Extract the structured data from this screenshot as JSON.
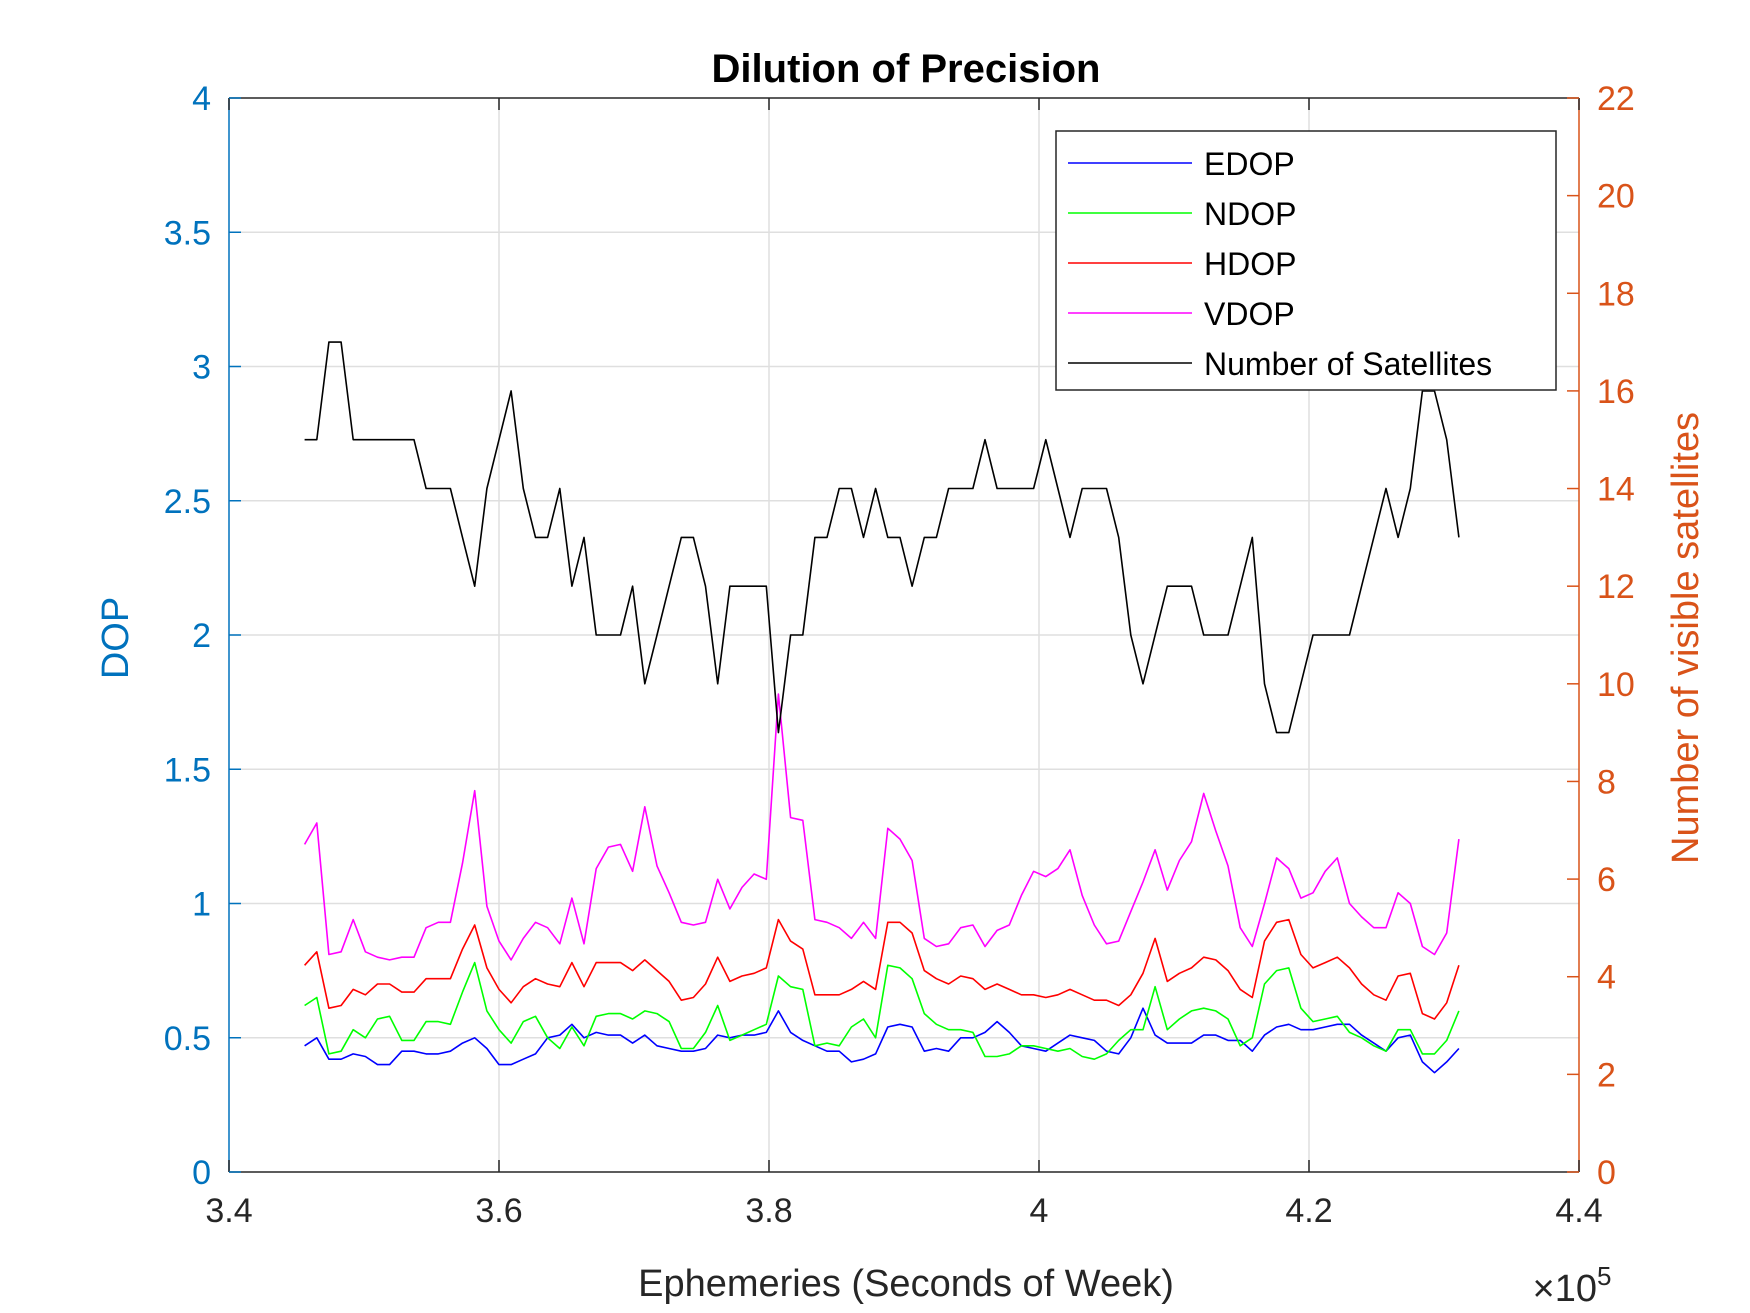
{
  "chart_data": {
    "type": "line",
    "title": "Dilution of Precision",
    "xlabel": "Ephemeries (Seconds of Week)",
    "ylabel_left": "DOP",
    "ylabel_right": "Number of visible satellites",
    "x_exponent_label": "×10",
    "x_exponent_power": "5",
    "xlim": [
      340000,
      440000
    ],
    "ylim_left": [
      0,
      4
    ],
    "ylim_right": [
      0,
      22
    ],
    "x_ticks": [
      340000,
      360000,
      380000,
      400000,
      420000,
      440000
    ],
    "x_tick_labels": [
      "3.4",
      "3.6",
      "3.8",
      "4",
      "4.2",
      "4.4"
    ],
    "y_left_ticks": [
      0,
      0.5,
      1,
      1.5,
      2,
      2.5,
      3,
      3.5,
      4
    ],
    "y_left_tick_labels": [
      "0",
      "0.5",
      "1",
      "1.5",
      "2",
      "2.5",
      "3",
      "3.5",
      "4"
    ],
    "y_right_ticks": [
      0,
      2,
      4,
      6,
      8,
      10,
      12,
      14,
      16,
      18,
      20,
      22
    ],
    "y_right_tick_labels": [
      "0",
      "2",
      "4",
      "6",
      "8",
      "10",
      "12",
      "14",
      "16",
      "18",
      "20",
      "22"
    ],
    "grid": true,
    "legend_position": "top-right",
    "x": [
      345600,
      346500,
      347400,
      348300,
      349200,
      350100,
      351000,
      351900,
      352800,
      353700,
      354600,
      355500,
      356400,
      357300,
      358200,
      359100,
      360000,
      360900,
      361800,
      362700,
      363600,
      364500,
      365400,
      366300,
      367200,
      368100,
      369000,
      369900,
      370800,
      371700,
      372600,
      373500,
      374400,
      375300,
      376200,
      377100,
      378000,
      378900,
      379800,
      380700,
      381600,
      382500,
      383400,
      384300,
      385200,
      386100,
      387000,
      387900,
      388800,
      389700,
      390600,
      391500,
      392400,
      393300,
      394200,
      395100,
      396000,
      396900,
      397800,
      398700,
      399600,
      400500,
      401400,
      402300,
      403200,
      404100,
      405000,
      405900,
      406800,
      407700,
      408600,
      409500,
      410400,
      411300,
      412200,
      413100,
      414000,
      414900,
      415800,
      416700,
      417600,
      418500,
      419400,
      420300,
      421200,
      422100,
      423000,
      423900,
      424800,
      425700,
      426600,
      427500,
      428400,
      429300,
      430200,
      431100
    ],
    "series": [
      {
        "name": "EDOP",
        "color": "#0000ff",
        "axis": "left",
        "values": [
          0.47,
          0.5,
          0.42,
          0.42,
          0.44,
          0.43,
          0.4,
          0.4,
          0.45,
          0.45,
          0.44,
          0.44,
          0.45,
          0.48,
          0.5,
          0.46,
          0.4,
          0.4,
          0.42,
          0.44,
          0.5,
          0.51,
          0.55,
          0.5,
          0.52,
          0.51,
          0.51,
          0.48,
          0.51,
          0.47,
          0.46,
          0.45,
          0.45,
          0.46,
          0.51,
          0.5,
          0.51,
          0.51,
          0.52,
          0.6,
          0.52,
          0.49,
          0.47,
          0.45,
          0.45,
          0.41,
          0.42,
          0.44,
          0.54,
          0.55,
          0.54,
          0.45,
          0.46,
          0.45,
          0.5,
          0.5,
          0.52,
          0.56,
          0.52,
          0.47,
          0.46,
          0.45,
          0.48,
          0.51,
          0.5,
          0.49,
          0.45,
          0.44,
          0.5,
          0.61,
          0.51,
          0.48,
          0.48,
          0.48,
          0.51,
          0.51,
          0.49,
          0.49,
          0.45,
          0.51,
          0.54,
          0.55,
          0.53,
          0.53,
          0.54,
          0.55,
          0.55,
          0.51,
          0.48,
          0.45,
          0.5,
          0.51,
          0.41,
          0.37,
          0.41,
          0.46
        ]
      },
      {
        "name": "NDOP",
        "color": "#00ff00",
        "axis": "left",
        "values": [
          0.62,
          0.65,
          0.44,
          0.45,
          0.53,
          0.5,
          0.57,
          0.58,
          0.49,
          0.49,
          0.56,
          0.56,
          0.55,
          0.67,
          0.78,
          0.6,
          0.53,
          0.48,
          0.56,
          0.58,
          0.5,
          0.46,
          0.54,
          0.47,
          0.58,
          0.59,
          0.59,
          0.57,
          0.6,
          0.59,
          0.56,
          0.46,
          0.46,
          0.52,
          0.62,
          0.49,
          0.51,
          0.53,
          0.55,
          0.73,
          0.69,
          0.68,
          0.47,
          0.48,
          0.47,
          0.54,
          0.57,
          0.5,
          0.77,
          0.76,
          0.72,
          0.59,
          0.55,
          0.53,
          0.53,
          0.52,
          0.43,
          0.43,
          0.44,
          0.47,
          0.47,
          0.46,
          0.45,
          0.46,
          0.43,
          0.42,
          0.44,
          0.49,
          0.53,
          0.53,
          0.69,
          0.53,
          0.57,
          0.6,
          0.61,
          0.6,
          0.57,
          0.47,
          0.5,
          0.7,
          0.75,
          0.76,
          0.61,
          0.56,
          0.57,
          0.58,
          0.52,
          0.5,
          0.47,
          0.45,
          0.53,
          0.53,
          0.44,
          0.44,
          0.49,
          0.6
        ]
      },
      {
        "name": "HDOP",
        "color": "#ff0000",
        "axis": "left",
        "values": [
          0.77,
          0.82,
          0.61,
          0.62,
          0.68,
          0.66,
          0.7,
          0.7,
          0.67,
          0.67,
          0.72,
          0.72,
          0.72,
          0.83,
          0.92,
          0.76,
          0.68,
          0.63,
          0.69,
          0.72,
          0.7,
          0.69,
          0.78,
          0.69,
          0.78,
          0.78,
          0.78,
          0.75,
          0.79,
          0.75,
          0.71,
          0.64,
          0.65,
          0.7,
          0.8,
          0.71,
          0.73,
          0.74,
          0.76,
          0.94,
          0.86,
          0.83,
          0.66,
          0.66,
          0.66,
          0.68,
          0.71,
          0.68,
          0.93,
          0.93,
          0.89,
          0.75,
          0.72,
          0.7,
          0.73,
          0.72,
          0.68,
          0.7,
          0.68,
          0.66,
          0.66,
          0.65,
          0.66,
          0.68,
          0.66,
          0.64,
          0.64,
          0.62,
          0.66,
          0.74,
          0.87,
          0.71,
          0.74,
          0.76,
          0.8,
          0.79,
          0.75,
          0.68,
          0.65,
          0.86,
          0.93,
          0.94,
          0.81,
          0.76,
          0.78,
          0.8,
          0.76,
          0.7,
          0.66,
          0.64,
          0.73,
          0.74,
          0.59,
          0.57,
          0.63,
          0.77
        ]
      },
      {
        "name": "VDOP",
        "color": "#ff00ff",
        "axis": "left",
        "values": [
          1.22,
          1.3,
          0.81,
          0.82,
          0.94,
          0.82,
          0.8,
          0.79,
          0.8,
          0.8,
          0.91,
          0.93,
          0.93,
          1.15,
          1.42,
          0.99,
          0.86,
          0.79,
          0.87,
          0.93,
          0.91,
          0.85,
          1.02,
          0.85,
          1.13,
          1.21,
          1.22,
          1.12,
          1.36,
          1.14,
          1.04,
          0.93,
          0.92,
          0.93,
          1.09,
          0.98,
          1.06,
          1.11,
          1.09,
          1.78,
          1.32,
          1.31,
          0.94,
          0.93,
          0.91,
          0.87,
          0.93,
          0.87,
          1.28,
          1.24,
          1.16,
          0.87,
          0.84,
          0.85,
          0.91,
          0.92,
          0.84,
          0.9,
          0.92,
          1.03,
          1.12,
          1.1,
          1.13,
          1.2,
          1.03,
          0.92,
          0.85,
          0.86,
          0.97,
          1.08,
          1.2,
          1.05,
          1.16,
          1.23,
          1.41,
          1.27,
          1.14,
          0.91,
          0.84,
          1.0,
          1.17,
          1.13,
          1.02,
          1.04,
          1.12,
          1.17,
          1.0,
          0.95,
          0.91,
          0.91,
          1.04,
          1.0,
          0.84,
          0.81,
          0.89,
          1.24
        ]
      },
      {
        "name": "Number of Satellites",
        "color": "#000000",
        "axis": "right",
        "values": [
          15,
          15,
          17,
          17,
          15,
          15,
          15,
          15,
          15,
          15,
          14,
          14,
          14,
          13,
          12,
          14,
          15,
          16,
          14,
          13,
          13,
          14,
          12,
          13,
          11,
          11,
          11,
          12,
          10,
          11,
          12,
          13,
          13,
          12,
          10,
          12,
          12,
          12,
          12,
          9,
          11,
          11,
          13,
          13,
          14,
          14,
          13,
          14,
          13,
          13,
          12,
          13,
          13,
          14,
          14,
          14,
          15,
          14,
          14,
          14,
          14,
          15,
          14,
          13,
          14,
          14,
          14,
          13,
          11,
          10,
          11,
          12,
          12,
          12,
          11,
          11,
          11,
          12,
          13,
          10,
          9,
          9,
          10,
          11,
          11,
          11,
          11,
          12,
          13,
          14,
          13,
          14,
          16,
          16,
          15,
          13
        ]
      }
    ]
  }
}
